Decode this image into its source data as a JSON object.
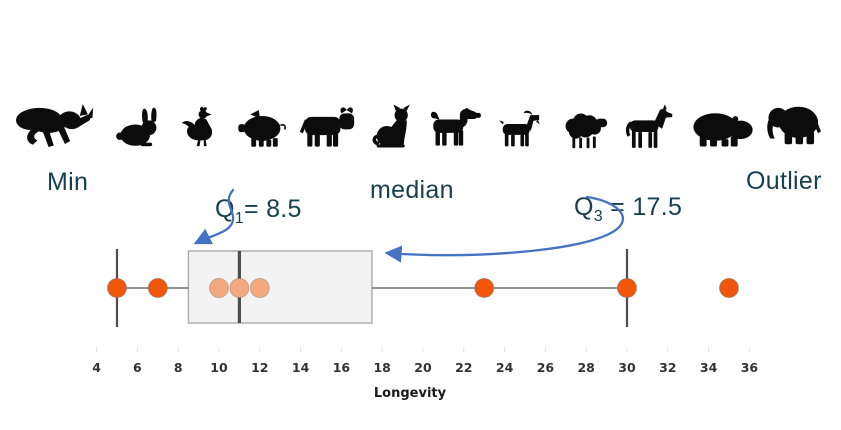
{
  "annotations": {
    "min": "Min",
    "q1": {
      "base": "Q",
      "sub": "1",
      "rest": "= 8.5"
    },
    "median": "median",
    "q3": {
      "base": "Q",
      "sub": "3",
      "rest": " = 17.5"
    },
    "outlier": "Outlier"
  },
  "animals": [
    "kangaroo",
    "rabbit",
    "chicken",
    "pig",
    "cow",
    "cat",
    "dog",
    "goat",
    "sheep",
    "horse",
    "hippo",
    "elephant"
  ],
  "colors": {
    "annotation_text": "#16404f",
    "arrow_blue": "#4472c4",
    "dot_orange": "#F2560A",
    "dot_orange_faded": "#F4A97E",
    "box_fill": "#F3F3F4",
    "box_border": "#ABABAB",
    "median_line": "#4D4D4D",
    "whisker_line": "#6E6E6E",
    "cap_line": "#4D4D4D",
    "tick_mark": "#E4E4E4"
  },
  "chart_data": {
    "type": "boxplot",
    "orientation": "horizontal",
    "title": "",
    "xlabel": "Longevity",
    "x_ticks": [
      4,
      6,
      8,
      10,
      12,
      14,
      16,
      18,
      20,
      22,
      24,
      26,
      28,
      30,
      32,
      34,
      36
    ],
    "xlim": [
      3,
      37
    ],
    "grid": false,
    "stats": {
      "min": 5,
      "q1": 8.5,
      "median": 11,
      "q3": 17.5,
      "upper_whisker": 30,
      "outlier": 35
    },
    "points_emphasized": [
      5,
      7,
      23,
      30,
      35
    ],
    "points_faded": [
      10,
      11,
      12
    ],
    "annotated_values": {
      "q1": 8.5,
      "q3": 17.5
    }
  }
}
